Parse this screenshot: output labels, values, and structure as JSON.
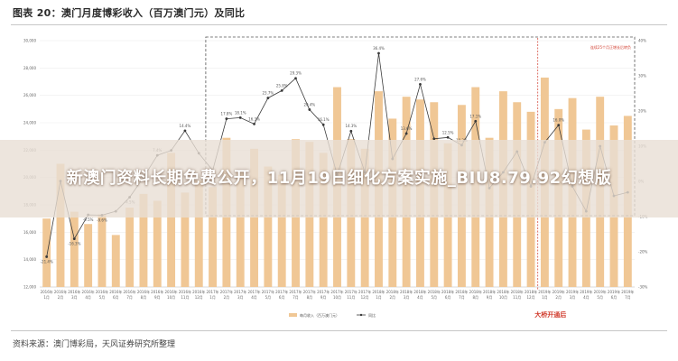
{
  "figure_title": "图表 20：澳门月度博彩收入（百万澳门元）及同比",
  "source_note": "资料来源：澳门博彩局，天风证券研究所整理",
  "banner": {
    "headline": "新澳门资料长期免费公开，11月19日细化方案实施_BIU8.79.92幻想版"
  },
  "colors": {
    "bar": "#f0c795",
    "line": "#3a3a3a",
    "annotation": "#d03a2b",
    "grid": "#eeeeee",
    "dashed_box": "#555555"
  },
  "chart_data": {
    "type": "bar",
    "x": [
      "2016年1月",
      "2016年2月",
      "2016年3月",
      "2016年4月",
      "2016年5月",
      "2016年6月",
      "2016年7月",
      "2016年8月",
      "2016年9月",
      "2016年10月",
      "2016年11月",
      "2016年12月",
      "2017年1月",
      "2017年2月",
      "2017年3月",
      "2017年4月",
      "2017年5月",
      "2017年6月",
      "2017年7月",
      "2017年8月",
      "2017年9月",
      "2017年10月",
      "2017年11月",
      "2017年12月",
      "2018年1月",
      "2018年2月",
      "2018年3月",
      "2018年4月",
      "2018年5月",
      "2018年6月",
      "2018年7月",
      "2018年8月",
      "2018年9月",
      "2018年10月",
      "2018年11月",
      "2018年12月",
      "2019年1月",
      "2019年2月",
      "2019年3月",
      "2019年4月",
      "2019年5月",
      "2019年6月",
      "2019年7月"
    ],
    "x_tick_labels": [
      {
        "year": "2016年",
        "month": "1月"
      },
      {
        "year": "2016年",
        "month": "2月"
      },
      {
        "year": "2016年",
        "month": "3月"
      },
      {
        "year": "2016年",
        "month": "4月"
      },
      {
        "year": "2016年",
        "month": "5月"
      },
      {
        "year": "2016年",
        "month": "6月"
      },
      {
        "year": "2016年",
        "month": "7月"
      },
      {
        "year": "2016年",
        "month": "8月"
      },
      {
        "year": "2016年",
        "month": "9月"
      },
      {
        "year": "2016年",
        "month": "10月"
      },
      {
        "year": "2016年",
        "month": "11月"
      },
      {
        "year": "2016年",
        "month": "12月"
      },
      {
        "year": "2017年",
        "month": "1月"
      },
      {
        "year": "2017年",
        "month": "2月"
      },
      {
        "year": "2017年",
        "month": "3月"
      },
      {
        "year": "2017年",
        "month": "4月"
      },
      {
        "year": "2017年",
        "month": "5月"
      },
      {
        "year": "2017年",
        "month": "6月"
      },
      {
        "year": "2017年",
        "month": "7月"
      },
      {
        "year": "2017年",
        "month": "8月"
      },
      {
        "year": "2017年",
        "month": "9月"
      },
      {
        "year": "2017年",
        "month": "10月"
      },
      {
        "year": "2017年",
        "month": "11月"
      },
      {
        "year": "2017年",
        "month": "12月"
      },
      {
        "year": "2018年",
        "month": "1月"
      },
      {
        "year": "2018年",
        "month": "2月"
      },
      {
        "year": "2018年",
        "month": "3月"
      },
      {
        "year": "2018年",
        "month": "4月"
      },
      {
        "year": "2018年",
        "month": "5月"
      },
      {
        "year": "2018年",
        "month": "6月"
      },
      {
        "year": "2018年",
        "month": "7月"
      },
      {
        "year": "2018年",
        "month": "8月"
      },
      {
        "year": "2018年",
        "month": "9月"
      },
      {
        "year": "2018年",
        "month": "10月"
      },
      {
        "year": "2018年",
        "month": "11月"
      },
      {
        "year": "2018年",
        "month": "12月"
      },
      {
        "year": "2019年",
        "month": "1月"
      },
      {
        "year": "2019年",
        "month": "2月"
      },
      {
        "year": "2019年",
        "month": "3月"
      },
      {
        "year": "2019年",
        "month": "4月"
      },
      {
        "year": "2019年",
        "month": "5月"
      },
      {
        "year": "2019年",
        "month": "6月"
      },
      {
        "year": "2019年",
        "month": "7月"
      }
    ],
    "series": [
      {
        "name": "每月收入（百万澳门元）",
        "type": "bar",
        "axis": "left",
        "values": [
          17000,
          21000,
          17500,
          16600,
          17300,
          15800,
          17800,
          18800,
          18300,
          21800,
          18900,
          19800,
          19300,
          22900,
          20400,
          22100,
          20800,
          20200,
          22800,
          22600,
          21800,
          26600,
          22800,
          22100,
          26300,
          24300,
          25900,
          25700,
          25500,
          22500,
          25300,
          26600,
          22900,
          26300,
          25500,
          24800,
          27300,
          25000,
          25800,
          23500,
          25900,
          23800,
          24500
        ]
      },
      {
        "name": "同比",
        "type": "line",
        "axis": "right",
        "values": [
          -21.4,
          0.1,
          -16.3,
          -9.5,
          -9.6,
          -8.5,
          -4.5,
          1.1,
          7.4,
          8.8,
          14.4,
          8.0,
          3.1,
          17.8,
          18.1,
          16.3,
          23.7,
          25.8,
          29.3,
          20.4,
          16.1,
          1.8,
          14.3,
          2.6,
          36.4,
          6.4,
          13.6,
          27.6,
          12.1,
          12.5,
          10.3,
          17.1,
          -1.9,
          2.6,
          8.5,
          -1.4,
          11.1,
          16.0,
          -1.4,
          -8.5,
          10.0,
          -4.1,
          -3.1
        ]
      }
    ],
    "data_labels": [
      {
        "index": 0,
        "text": "-21.4%"
      },
      {
        "index": 2,
        "text": "-16.3%"
      },
      {
        "index": 3,
        "text": "-9.5%"
      },
      {
        "index": 4,
        "text": "-9.6%"
      },
      {
        "index": 6,
        "text": "-4.5%"
      },
      {
        "index": 8,
        "text": "7.4%"
      },
      {
        "index": 10,
        "text": "14.4%"
      },
      {
        "index": 13,
        "text": "17.8%"
      },
      {
        "index": 14,
        "text": "18.1%"
      },
      {
        "index": 15,
        "text": "16.3%"
      },
      {
        "index": 16,
        "text": "23.7%"
      },
      {
        "index": 17,
        "text": "25.8%"
      },
      {
        "index": 18,
        "text": "29.3%"
      },
      {
        "index": 19,
        "text": "20.4%"
      },
      {
        "index": 20,
        "text": "16.1%"
      },
      {
        "index": 22,
        "text": "14.3%"
      },
      {
        "index": 24,
        "text": "36.4%"
      },
      {
        "index": 26,
        "text": "13.6%"
      },
      {
        "index": 27,
        "text": "27.6%"
      },
      {
        "index": 29,
        "text": "12.5%"
      },
      {
        "index": 30,
        "text": "10.3%"
      },
      {
        "index": 31,
        "text": "17.1%"
      },
      {
        "index": 37,
        "text": "16.0%"
      }
    ],
    "y_left": {
      "ticks": [
        "12,000",
        "14,000",
        "16,000",
        "18,000",
        "20,000",
        "22,000",
        "24,000",
        "26,000",
        "28,000",
        "30,000"
      ],
      "range": [
        12000,
        30000
      ]
    },
    "y_right": {
      "ticks": [
        "-30%",
        "-20%",
        "-10%",
        "0%",
        "10%",
        "20%",
        "30%",
        "40%"
      ],
      "range": [
        -30,
        40
      ]
    },
    "legend": [
      {
        "label": "每月收入（百万澳门元）",
        "marker": "bar"
      },
      {
        "label": "同比",
        "marker": "line"
      }
    ],
    "legend_position": "bottom-center",
    "annotations": {
      "box_label": "连续25个月正增长后转负",
      "bottom_label": "大桥开通后",
      "box_start_index": 12,
      "box_end_index": 42,
      "divider_index": 35
    },
    "grid": true
  }
}
